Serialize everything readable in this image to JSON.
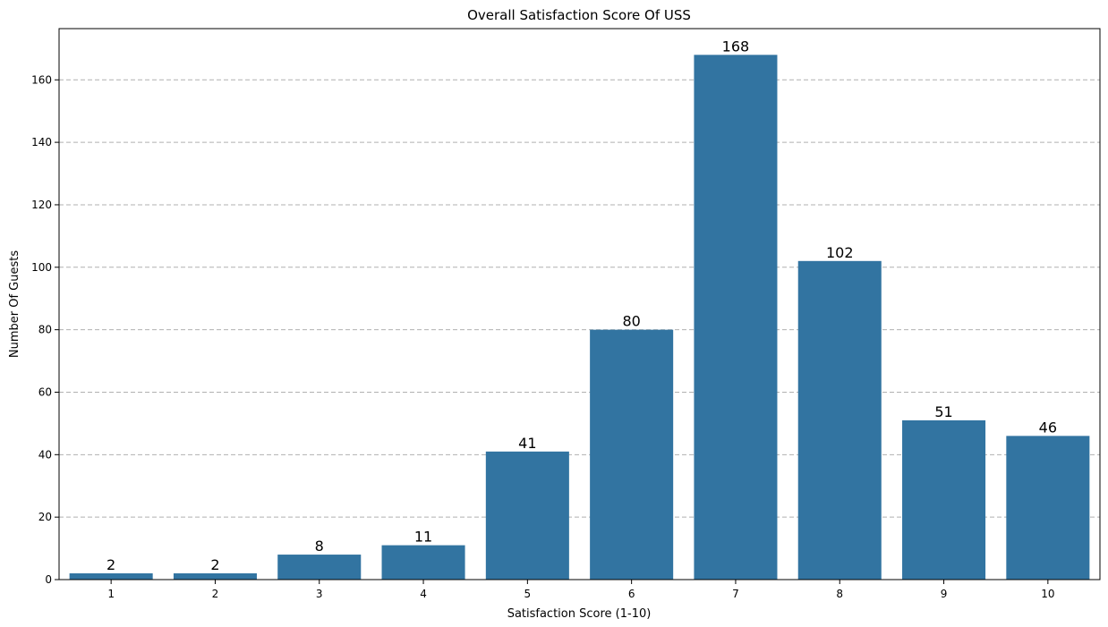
{
  "chart_data": {
    "type": "bar",
    "title": "Overall Satisfaction Score Of USS",
    "xlabel": "Satisfaction Score (1-10)",
    "ylabel": "Number Of Guests",
    "categories": [
      "1",
      "2",
      "3",
      "4",
      "5",
      "6",
      "7",
      "8",
      "9",
      "10"
    ],
    "values": [
      2,
      2,
      8,
      11,
      41,
      80,
      168,
      102,
      51,
      46
    ],
    "data_labels": [
      "2",
      "2",
      "8",
      "11",
      "41",
      "80",
      "168",
      "102",
      "51",
      "46"
    ],
    "ylim": [
      0,
      176.4
    ],
    "yticks": [
      0,
      20,
      40,
      60,
      80,
      100,
      120,
      140,
      160
    ],
    "grid": "y-dashed",
    "bar_color": "#3274a1",
    "grid_color": "#b0b0b0"
  }
}
